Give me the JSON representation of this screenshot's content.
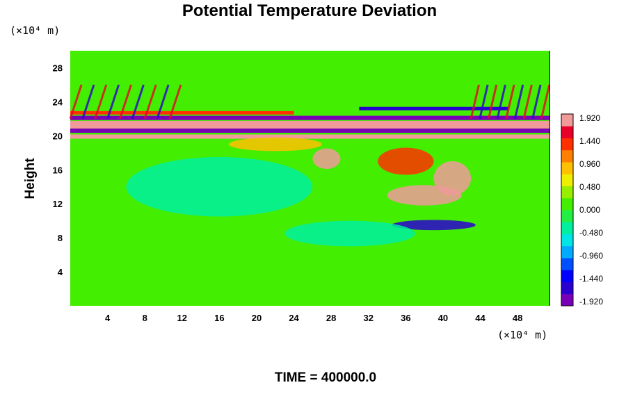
{
  "chart_data": {
    "type": "heatmap",
    "title": "Potential Temperature Deviation",
    "xlabel": "",
    "ylabel": "Height",
    "x_unit": "(×10⁴ m)",
    "y_unit": "(×10⁴ m)",
    "xlim": [
      0,
      51.5
    ],
    "ylim": [
      0,
      30
    ],
    "x_ticks": [
      4,
      8,
      12,
      16,
      20,
      24,
      28,
      32,
      36,
      40,
      44,
      48
    ],
    "y_ticks": [
      4,
      8,
      12,
      16,
      20,
      24,
      28
    ],
    "colorbar": {
      "range": [
        -1.92,
        1.92
      ],
      "labels": [
        "1.920",
        "1.440",
        "0.960",
        "0.480",
        "0.000",
        "-0.480",
        "-0.960",
        "-1.440",
        "-1.920"
      ],
      "colors": [
        "#7a00b8",
        "#2a00d0",
        "#0000ff",
        "#0050ff",
        "#00aaff",
        "#00e5e5",
        "#00f0a0",
        "#22ee44",
        "#44ee00",
        "#99ee00",
        "#eeee00",
        "#ffc000",
        "#ff8000",
        "#ff3000",
        "#e8002a",
        "#f09a9a"
      ]
    },
    "background_value": 0.05,
    "features": [
      {
        "kind": "band",
        "y": 21.3,
        "thickness": 0.9,
        "value": 1.92,
        "x_range": [
          0,
          51.5
        ]
      },
      {
        "kind": "band",
        "y": 20.6,
        "thickness": 0.5,
        "value": -1.92,
        "x_range": [
          0,
          51.5
        ]
      },
      {
        "kind": "band",
        "y": 22.1,
        "thickness": 0.5,
        "value": -1.92,
        "x_range": [
          0,
          51.5
        ]
      },
      {
        "kind": "band",
        "y": 19.9,
        "thickness": 0.5,
        "value": 1.92,
        "x_range": [
          0,
          51.5
        ]
      },
      {
        "kind": "band",
        "y": 23.2,
        "thickness": 0.4,
        "value": -1.5,
        "x_range": [
          31,
          47
        ]
      },
      {
        "kind": "band",
        "y": 22.7,
        "thickness": 0.4,
        "value": 1.2,
        "x_range": [
          0,
          24
        ]
      },
      {
        "kind": "waves",
        "y_range": [
          22,
          26
        ],
        "x_range": [
          0,
          12
        ],
        "value": 1.6
      },
      {
        "kind": "waves",
        "y_range": [
          22,
          26
        ],
        "x_range": [
          43,
          51.5
        ],
        "value": 1.6
      },
      {
        "kind": "blob",
        "x": 38,
        "y": 13,
        "rx": 4,
        "ry": 1.2,
        "value": 1.9
      },
      {
        "kind": "blob",
        "x": 41,
        "y": 15,
        "rx": 2,
        "ry": 2,
        "value": 1.9
      },
      {
        "kind": "blob",
        "x": 36,
        "y": 17,
        "rx": 3,
        "ry": 1.6,
        "value": 1.2
      },
      {
        "kind": "blob",
        "x": 27.5,
        "y": 17.3,
        "rx": 1.5,
        "ry": 1.2,
        "value": 1.9
      },
      {
        "kind": "blob",
        "x": 39,
        "y": 9.5,
        "rx": 4.5,
        "ry": 0.6,
        "value": -1.5
      },
      {
        "kind": "blob",
        "x": 16,
        "y": 14,
        "rx": 10,
        "ry": 3.5,
        "value": -0.35
      },
      {
        "kind": "blob",
        "x": 30,
        "y": 8.5,
        "rx": 7,
        "ry": 1.5,
        "value": -0.3
      },
      {
        "kind": "blob",
        "x": 22,
        "y": 19,
        "rx": 5,
        "ry": 0.8,
        "value": 0.8
      }
    ]
  },
  "time_label": "TIME = 400000.0"
}
